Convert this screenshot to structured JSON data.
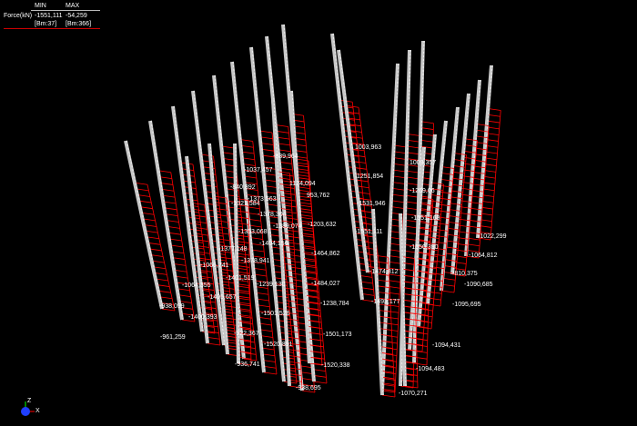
{
  "legend": {
    "min_header": "MIN",
    "max_header": "MAX",
    "quantity": "Force(kN)",
    "min_value": "-1551,111",
    "max_value": "-54,259",
    "min_element": "[Bm:37]",
    "max_element": "[Bm:366]"
  },
  "labels": [
    "-839,964",
    "1003,963",
    "-1037,457",
    "1251,854",
    "1003,357",
    "1124,094",
    "-840,892",
    "953,762",
    "-1373,563",
    "-1531,946",
    "-1269,06",
    "-1321,584",
    "-1378,304",
    "-1551,168",
    "-1203,632",
    "-1389,074",
    "-1551,111",
    "-1353,068",
    "-1022,299",
    "-1550,390",
    "-1404,156",
    "-1377,148",
    "-1464,862",
    "-1064,812",
    "-1378,941",
    "-1066,741",
    "-810,375",
    "-1474,812",
    "-1401,519",
    "-1484,027",
    "-1090,685",
    "-1064,355",
    "-1239,130",
    "-1405,657",
    "-1493,177",
    "-1238,784",
    "-1095,695",
    "-938,099",
    "-1501,526",
    "-1400,393",
    "-1501,173",
    "-922,367",
    "-961,259",
    "-1520,891",
    "-1094,431",
    "-936,741",
    "-1520,338",
    "-1094,483",
    "-938,695",
    "-1070,271"
  ],
  "axes": {
    "z": "Z",
    "x": "X"
  },
  "colors": {
    "background": "#000000",
    "column": "#c8c8c8",
    "diagram": "#ff0000",
    "axis_sphere": "#1f3fff"
  }
}
